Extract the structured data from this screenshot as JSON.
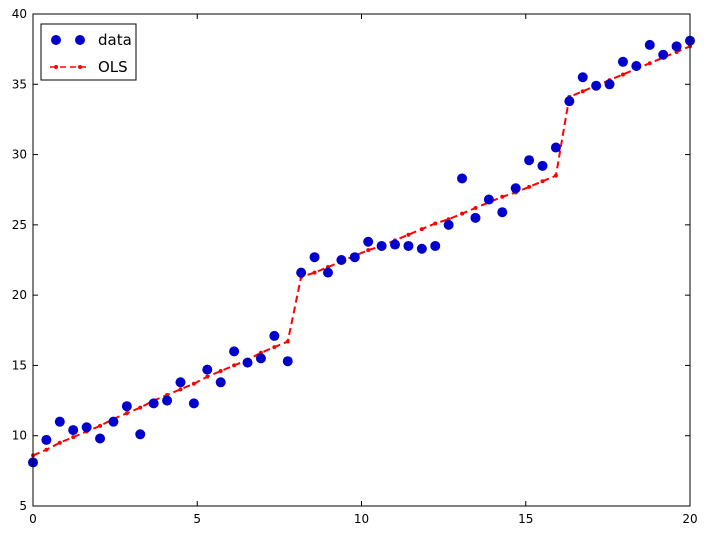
{
  "chart_data": {
    "type": "scatter",
    "xlim": [
      0,
      20
    ],
    "ylim": [
      5,
      40
    ],
    "x_ticks": [
      "0",
      "5",
      "10",
      "15",
      "20"
    ],
    "y_ticks": [
      "5",
      "10",
      "15",
      "20",
      "25",
      "30",
      "35",
      "40"
    ],
    "grid": false,
    "legend_placement": "top-left",
    "legend": [
      "data",
      "OLS"
    ],
    "colors": {
      "data": "#0000cc",
      "ols": "#ff0000"
    },
    "series": [
      {
        "name": "data",
        "style": "markers",
        "x": [
          0.0,
          0.408,
          0.816,
          1.224,
          1.633,
          2.041,
          2.449,
          2.857,
          3.265,
          3.673,
          4.082,
          4.49,
          4.898,
          5.306,
          5.714,
          6.122,
          6.531,
          6.939,
          7.347,
          7.755,
          8.163,
          8.571,
          8.98,
          9.388,
          9.796,
          10.204,
          10.612,
          11.02,
          11.429,
          11.837,
          12.245,
          12.653,
          13.061,
          13.469,
          13.878,
          14.286,
          14.694,
          15.102,
          15.51,
          15.918,
          16.327,
          16.735,
          17.143,
          17.551,
          17.959,
          18.367,
          18.776,
          19.184,
          19.592,
          20.0
        ],
        "y": [
          8.1,
          9.7,
          11.0,
          10.4,
          10.6,
          9.8,
          11.0,
          12.1,
          10.1,
          12.3,
          12.5,
          13.8,
          12.3,
          14.7,
          13.8,
          16.0,
          15.2,
          15.5,
          17.1,
          15.3,
          21.6,
          22.7,
          21.6,
          22.5,
          22.7,
          23.8,
          23.5,
          23.6,
          23.5,
          23.3,
          23.5,
          25.0,
          28.3,
          25.5,
          26.8,
          25.9,
          27.6,
          29.6,
          29.2,
          30.5,
          33.8,
          35.5,
          34.9,
          35.0,
          36.6,
          36.3,
          37.8,
          37.1,
          37.7,
          38.1
        ]
      },
      {
        "name": "OLS",
        "style": "dashed-line-with-dots",
        "x": [
          0.0,
          0.408,
          0.816,
          1.224,
          1.633,
          2.041,
          2.449,
          2.857,
          3.265,
          3.673,
          4.082,
          4.49,
          4.898,
          5.306,
          5.714,
          6.122,
          6.531,
          6.939,
          7.347,
          7.755,
          8.163,
          8.571,
          8.98,
          9.388,
          9.796,
          10.204,
          10.612,
          11.02,
          11.429,
          11.837,
          12.245,
          12.653,
          13.061,
          13.469,
          13.878,
          14.286,
          14.694,
          15.102,
          15.51,
          15.918,
          16.327,
          16.735,
          17.143,
          17.551,
          17.959,
          18.367,
          18.776,
          19.184,
          19.592,
          20.0
        ],
        "y": [
          8.6,
          9.0,
          9.5,
          9.9,
          10.3,
          10.7,
          11.2,
          11.6,
          12.0,
          12.5,
          12.9,
          13.3,
          13.7,
          14.2,
          14.6,
          15.0,
          15.4,
          15.9,
          16.3,
          16.7,
          21.3,
          21.6,
          22.0,
          22.4,
          22.8,
          23.2,
          23.5,
          23.9,
          24.3,
          24.7,
          25.1,
          25.4,
          25.8,
          26.2,
          26.6,
          27.0,
          27.3,
          27.7,
          28.1,
          28.5,
          34.1,
          34.5,
          34.9,
          35.3,
          35.7,
          36.1,
          36.5,
          36.9,
          37.3,
          37.7
        ]
      }
    ]
  }
}
